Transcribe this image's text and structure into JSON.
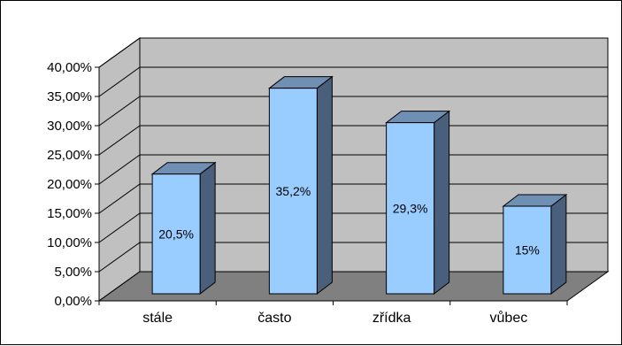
{
  "chart_data": {
    "type": "bar",
    "categories": [
      "stále",
      "často",
      "zřídka",
      "vůbec"
    ],
    "values": [
      20.5,
      35.2,
      29.3,
      15
    ],
    "value_labels": [
      "20,5%",
      "35,2%",
      "29,3%",
      "15%"
    ],
    "title": "",
    "xlabel": "",
    "ylabel": "",
    "ylim": [
      0,
      40
    ],
    "y_ticks": [
      "0,00%",
      "5,00%",
      "10,00%",
      "15,00%",
      "20,00%",
      "25,00%",
      "30,00%",
      "35,00%",
      "40,00%"
    ],
    "grid": true,
    "legend": "none",
    "style": "3d-clustered-column"
  },
  "colors": {
    "bar_front": "#99ccff",
    "bar_side": "#4a5f7c",
    "bar_top": "#6f8fb3",
    "back_wall": "#c0c0c0",
    "side_wall": "#c0c0c0",
    "floor": "#808080",
    "gridline": "#000000"
  }
}
